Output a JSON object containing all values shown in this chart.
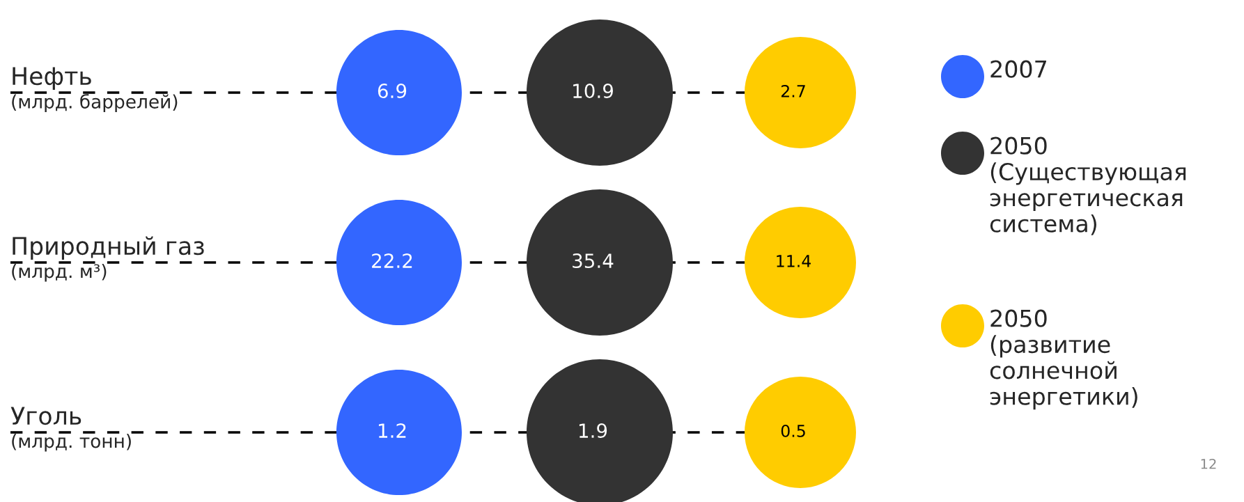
{
  "chart_data": {
    "type": "other",
    "categories": [
      "Нефть\n(млрд. баррелей)",
      "Природный газ\n(млрд. м³)",
      "Уголь\n(млрд. тонн)"
    ],
    "series": [
      {
        "name": "2007",
        "color": "#3366ff",
        "values": [
          6.9,
          22.2,
          1.2
        ]
      },
      {
        "name": "2050\n(Существующая\nэнергетическая\nсистема)",
        "color": "#333333",
        "values": [
          10.9,
          35.4,
          1.9
        ]
      },
      {
        "name": "2050\n(развитие\nсолнечной\nэнергетики)",
        "color": "#ffcc00",
        "values": [
          2.7,
          11.4,
          0.5
        ]
      }
    ],
    "data_labels": true,
    "legend": "right",
    "annotations": [
      "12"
    ]
  }
}
